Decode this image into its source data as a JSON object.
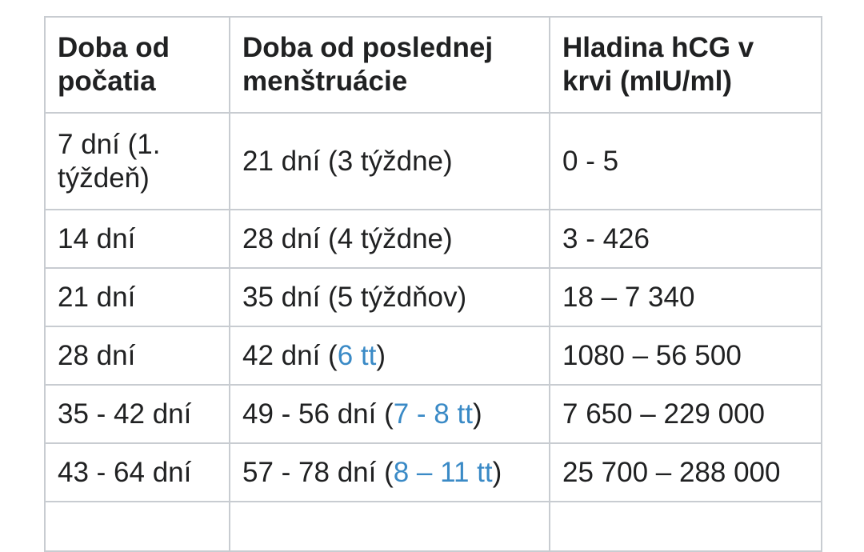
{
  "table": {
    "header": [
      "Doba od počatia",
      "Doba od poslednej menštruácie",
      "Hladina hCG v krvi (mIU/ml)"
    ],
    "rows": [
      [
        {
          "text": "7 dní (1. týždeň)"
        },
        {
          "text": "21 dní (3 týždne)"
        },
        {
          "text": "0 - 5"
        }
      ],
      [
        {
          "text": "14 dní"
        },
        {
          "text": "28 dní (4 týždne)"
        },
        {
          "text": "3 - 426"
        }
      ],
      [
        {
          "text": "21 dní"
        },
        {
          "text": "35 dní (5 týždňov)"
        },
        {
          "text": "18 – 7 340"
        }
      ],
      [
        {
          "text": "28 dní"
        },
        {
          "before": "42 dní (",
          "link": "6 tt",
          "after": ")"
        },
        {
          "text": "1080 – 56 500"
        }
      ],
      [
        {
          "text": "35 - 42 dní"
        },
        {
          "before": "49 - 56 dní (",
          "link": "7 - 8 tt",
          "after": ")"
        },
        {
          "text": "7 650 – 229 000"
        }
      ],
      [
        {
          "text": "43 - 64 dní"
        },
        {
          "before": "57 - 78 dní (",
          "link": "8 – 11 tt",
          "after": ")"
        },
        {
          "text": "25 700 – 288 000"
        }
      ]
    ]
  }
}
